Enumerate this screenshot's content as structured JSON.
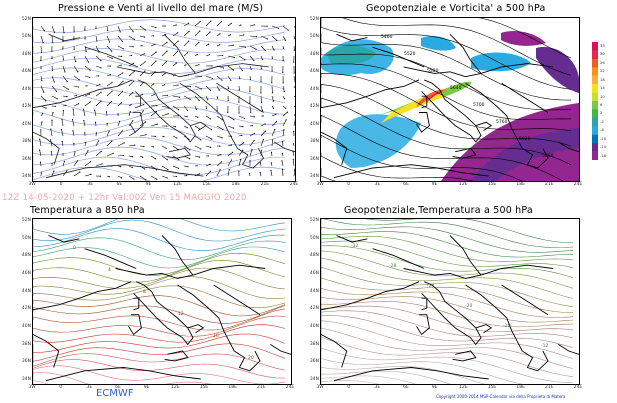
{
  "panels": {
    "tl": {
      "title": "Pressione e Venti al livello del mare (M/S)"
    },
    "tr": {
      "title": "Geopotenziale e Vorticita' a 500 hPa"
    },
    "bl": {
      "title": "Temperatura a 850 hPa"
    },
    "br": {
      "title": "Geopotenziale,Temperatura a 500 hPa"
    }
  },
  "run_info": "12Z 14-05-2020 + 12hr  Val:00Z Ven 15 MAGGIO 2020",
  "source_label": "ECMWF",
  "copyright": "Copyright 2000-2014 MSP-Calendar via della Proprieta di Matera",
  "axes": {
    "lat_labels": [
      "52N",
      "50N",
      "48N",
      "46N",
      "44N",
      "42N",
      "40N",
      "38N",
      "36N",
      "34N"
    ],
    "lon_labels": [
      "3W",
      "0",
      "3E",
      "6E",
      "9E",
      "12E",
      "15E",
      "18E",
      "21E",
      "24E"
    ]
  },
  "colorbar": {
    "labels": [
      "33",
      "30",
      "26",
      "22",
      "18",
      "14",
      "10",
      "6",
      "2",
      "-2",
      "-6",
      "-10",
      "-14",
      "-18"
    ],
    "colors": [
      "#d4145a",
      "#e8254a",
      "#f25c24",
      "#f7931e",
      "#fbb03b",
      "#f7e01c",
      "#c6e02a",
      "#7ac943",
      "#3fb54a",
      "#2aa6a8",
      "#29abe2",
      "#0071bc",
      "#662d91",
      "#93278f"
    ]
  },
  "contour_labels": {
    "tr": [
      "5460",
      "5520",
      "5580",
      "5640",
      "5700",
      "5760",
      "5820",
      "5880"
    ],
    "bl": [
      "0",
      "4",
      "8",
      "12",
      "16",
      "20"
    ],
    "br": [
      "-32",
      "-28",
      "-24",
      "-20",
      "-16",
      "-12"
    ]
  },
  "colors": {
    "run_info": "#f4a6a6",
    "ecmwf": "#2c5fd6",
    "wind_vectors": "#000000",
    "isobars": "#7a8fd6",
    "coastlines": "#000000"
  }
}
